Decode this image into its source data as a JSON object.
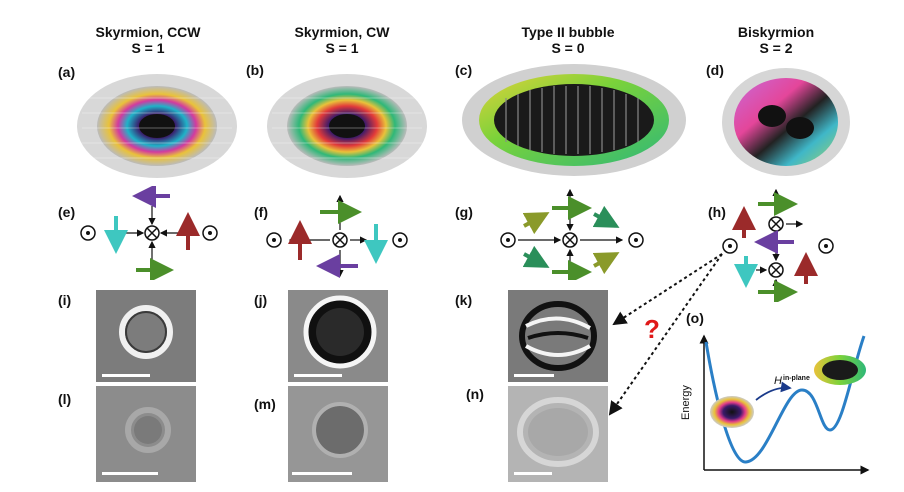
{
  "columns": [
    {
      "title": "Skyrmion, CCW",
      "subtitle": "S = 1"
    },
    {
      "title": "Skyrmion, CW",
      "subtitle": "S = 1"
    },
    {
      "title": "Type II bubble",
      "subtitle": "S = 0"
    },
    {
      "title": "Biskyrmion",
      "subtitle": "S = 2"
    }
  ],
  "panel_labels": {
    "a": "(a)",
    "b": "(b)",
    "c": "(c)",
    "d": "(d)",
    "e": "(e)",
    "f": "(f)",
    "g": "(g)",
    "h": "(h)",
    "i": "(i)",
    "j": "(j)",
    "k": "(k)",
    "l": "(l)",
    "m": "(m)",
    "n": "(n)",
    "o": "(o)"
  },
  "question_mark": "?",
  "energy_plot": {
    "ylabel": "Energy",
    "field_label_main": "H",
    "field_label_sub": "in-plane"
  },
  "colors": {
    "purple": "#6a3fa0",
    "teal": "#3ec7c0",
    "red": "#9b2a2a",
    "green": "#4b8f2a",
    "olive": "#8a9a2a",
    "curve": "#2a7fc6",
    "question": "#e01818"
  }
}
